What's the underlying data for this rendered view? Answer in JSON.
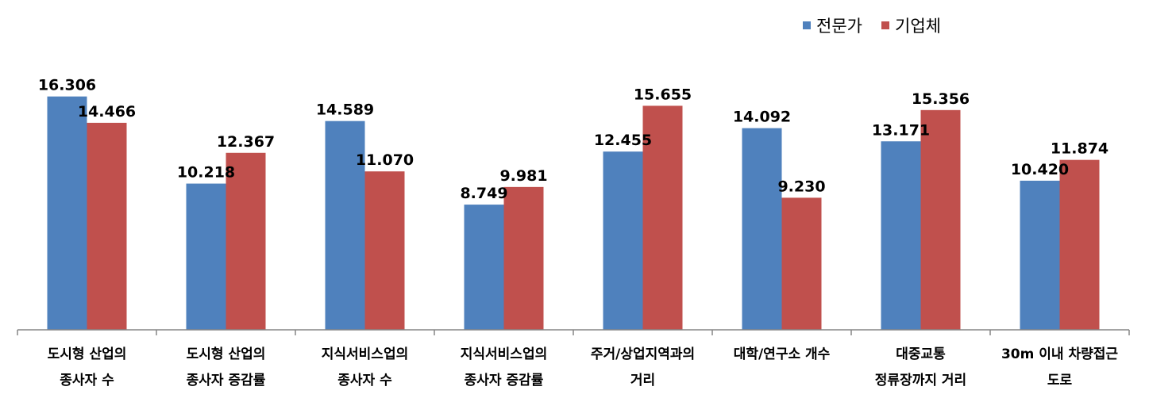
{
  "chart_data": {
    "type": "bar",
    "title": "",
    "xlabel": "",
    "ylabel": "",
    "ylim": [
      0,
      18
    ],
    "grid": false,
    "legend_position": "top-right",
    "categories": [
      [
        "도시형 산업의",
        "종사자 수"
      ],
      [
        "도시형 산업의",
        "종사자 증감률"
      ],
      [
        "지식서비스업의",
        "종사자 수"
      ],
      [
        "지식서비스업의",
        "종사자 증감률"
      ],
      [
        "주거/상업지역과의",
        "거리"
      ],
      [
        "대학/연구소 개수"
      ],
      [
        "대중교통",
        "정류장까지 거리"
      ],
      [
        "30m 이내 차량접근",
        "도로"
      ]
    ],
    "series": [
      {
        "name": "전문가",
        "color": "#4F81BD",
        "values": [
          16.306,
          10.218,
          14.589,
          8.749,
          12.455,
          14.092,
          13.171,
          10.42
        ],
        "labels": [
          "16.306",
          "10.218",
          "14.589",
          "8.749",
          "12.455",
          "14.092",
          "13.171",
          "10.420"
        ]
      },
      {
        "name": "기업체",
        "color": "#C0504D",
        "values": [
          14.466,
          12.367,
          11.07,
          9.981,
          15.655,
          9.23,
          15.356,
          11.874
        ],
        "labels": [
          "14.466",
          "12.367",
          "11.070",
          "9.981",
          "15.655",
          "9.230",
          "15.356",
          "11.874"
        ]
      }
    ]
  }
}
